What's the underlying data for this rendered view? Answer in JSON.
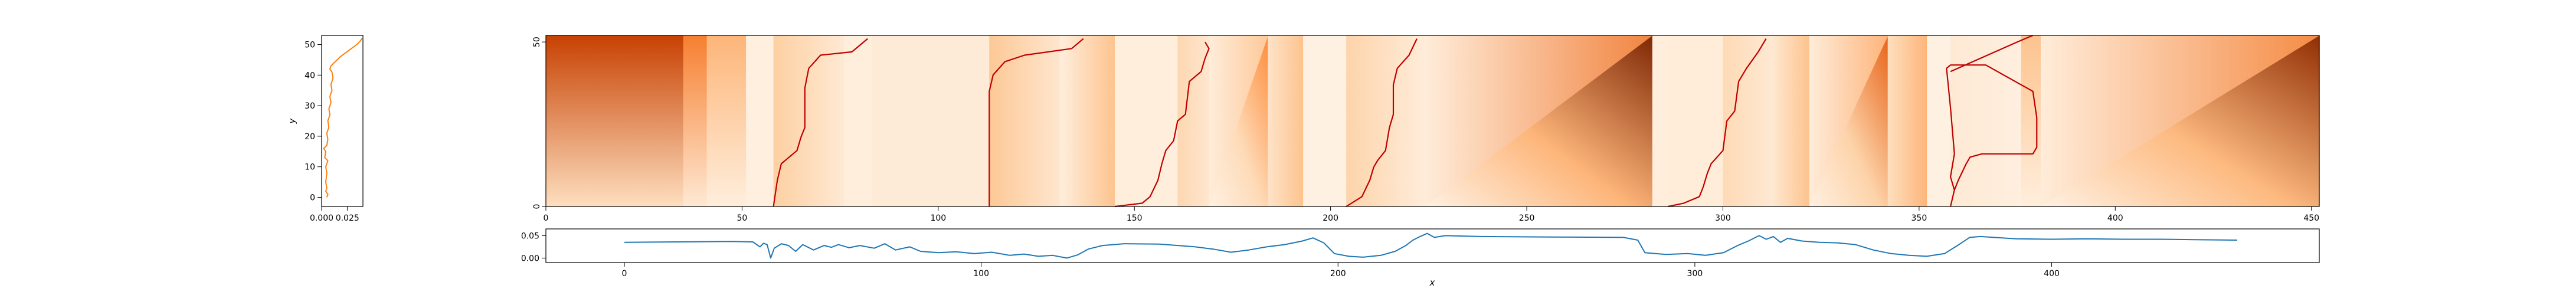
{
  "figure": {
    "background": "#ffffff"
  },
  "chart_data": [
    {
      "id": "side-profile",
      "type": "line",
      "orientation": "vertical",
      "xlabel": "",
      "ylabel": "y",
      "xlim": [
        0,
        0.04
      ],
      "ylim": [
        -3,
        53
      ],
      "xticks": [
        0.0,
        0.025
      ],
      "xtick_labels": [
        "0.000",
        "0.025"
      ],
      "yticks": [
        0,
        10,
        20,
        30,
        40,
        50
      ],
      "ytick_labels": [
        "0",
        "10",
        "20",
        "30",
        "40",
        "50"
      ],
      "color": "#ff7f0e",
      "grid": false,
      "points": [
        {
          "y": 0,
          "x": 0.005
        },
        {
          "y": 1,
          "x": 0.006
        },
        {
          "y": 2,
          "x": 0.004
        },
        {
          "y": 3,
          "x": 0.005
        },
        {
          "y": 5,
          "x": 0.004
        },
        {
          "y": 8,
          "x": 0.005
        },
        {
          "y": 10,
          "x": 0.004
        },
        {
          "y": 12,
          "x": 0.006
        },
        {
          "y": 13,
          "x": 0.003
        },
        {
          "y": 15,
          "x": 0.004
        },
        {
          "y": 16,
          "x": 0.002
        },
        {
          "y": 17,
          "x": 0.005
        },
        {
          "y": 19,
          "x": 0.006
        },
        {
          "y": 21,
          "x": 0.005
        },
        {
          "y": 23,
          "x": 0.007
        },
        {
          "y": 25,
          "x": 0.006
        },
        {
          "y": 27,
          "x": 0.008
        },
        {
          "y": 29,
          "x": 0.007
        },
        {
          "y": 31,
          "x": 0.009
        },
        {
          "y": 33,
          "x": 0.008
        },
        {
          "y": 35,
          "x": 0.01
        },
        {
          "y": 37,
          "x": 0.009
        },
        {
          "y": 39,
          "x": 0.011
        },
        {
          "y": 41,
          "x": 0.01
        },
        {
          "y": 42,
          "x": 0.008
        },
        {
          "y": 43,
          "x": 0.009
        },
        {
          "y": 44,
          "x": 0.012
        },
        {
          "y": 45,
          "x": 0.015
        },
        {
          "y": 46,
          "x": 0.018
        },
        {
          "y": 47,
          "x": 0.022
        },
        {
          "y": 48,
          "x": 0.026
        },
        {
          "y": 49,
          "x": 0.03
        },
        {
          "y": 50,
          "x": 0.034
        },
        {
          "y": 51,
          "x": 0.037
        },
        {
          "y": 52,
          "x": 0.039
        }
      ]
    },
    {
      "id": "heatmap",
      "type": "heatmap",
      "xlabel": "",
      "ylabel": "",
      "xlim": [
        0,
        452
      ],
      "ylim": [
        0,
        52
      ],
      "xticks": [
        0,
        50,
        100,
        150,
        200,
        250,
        300,
        350,
        400,
        450
      ],
      "xtick_labels": [
        "0",
        "50",
        "100",
        "150",
        "200",
        "250",
        "300",
        "350",
        "400",
        "450"
      ],
      "yticks": [
        0,
        50
      ],
      "ytick_labels": [
        "0",
        "50"
      ],
      "colormap": "Oranges",
      "colormap_stops": [
        "#fff5eb",
        "#fdd0a2",
        "#fd8d3c",
        "#d94801",
        "#7f2704"
      ],
      "path_color": "#c00000",
      "segments": [
        {
          "x0": 0,
          "x1": 35,
          "kind": "gradient_y",
          "top": 0.8,
          "bottom": 0.15
        },
        {
          "x0": 35,
          "x1": 41,
          "kind": "gradient_y",
          "top": 0.55,
          "bottom": 0.08
        },
        {
          "x0": 41,
          "x1": 51,
          "kind": "gradient_y",
          "top": 0.35,
          "bottom": 0.05
        },
        {
          "x0": 51,
          "x1": 58,
          "kind": "flat",
          "level": 0.04
        },
        {
          "x0": 58,
          "x1": 76,
          "kind": "fade_x",
          "start": 0.25,
          "end": 0.08
        },
        {
          "x0": 76,
          "x1": 83,
          "kind": "flat",
          "level": 0.05
        },
        {
          "x0": 83,
          "x1": 113,
          "kind": "flat",
          "level": 0.07
        },
        {
          "x0": 113,
          "x1": 131,
          "kind": "fade_x",
          "start": 0.28,
          "end": 0.1
        },
        {
          "x0": 131,
          "x1": 145,
          "kind": "fade_x",
          "start": 0.05,
          "end": 0.3
        },
        {
          "x0": 145,
          "x1": 161,
          "kind": "flat",
          "level": 0.05
        },
        {
          "x0": 161,
          "x1": 169,
          "kind": "fade_x",
          "start": 0.2,
          "end": 0.1
        },
        {
          "x0": 169,
          "x1": 184,
          "kind": "triangle",
          "peak": 0.5
        },
        {
          "x0": 184,
          "x1": 193,
          "kind": "fade_x",
          "start": 0.12,
          "end": 0.3
        },
        {
          "x0": 193,
          "x1": 204,
          "kind": "flat",
          "level": 0.03
        },
        {
          "x0": 204,
          "x1": 224,
          "kind": "fade_x",
          "start": 0.22,
          "end": 0.06
        },
        {
          "x0": 224,
          "x1": 282,
          "kind": "triangle",
          "peak": 1.0
        },
        {
          "x0": 282,
          "x1": 286,
          "kind": "flat",
          "level": 0.05
        },
        {
          "x0": 286,
          "x1": 300,
          "kind": "flat",
          "level": 0.06
        },
        {
          "x0": 300,
          "x1": 313,
          "kind": "fade_x",
          "start": 0.18,
          "end": 0.08
        },
        {
          "x0": 313,
          "x1": 322,
          "kind": "fade_x",
          "start": 0.1,
          "end": 0.3
        },
        {
          "x0": 322,
          "x1": 342,
          "kind": "triangle",
          "peak": 0.65
        },
        {
          "x0": 342,
          "x1": 352,
          "kind": "fade_x",
          "start": 0.15,
          "end": 0.35
        },
        {
          "x0": 352,
          "x1": 358,
          "kind": "flat",
          "level": 0.03
        },
        {
          "x0": 358,
          "x1": 376,
          "kind": "fade_x",
          "start": 0.08,
          "end": 0.04
        },
        {
          "x0": 376,
          "x1": 381,
          "kind": "gradient_y",
          "top": 0.3,
          "bottom": 0.05
        },
        {
          "x0": 381,
          "x1": 452,
          "kind": "triangle",
          "peak": 0.95
        }
      ],
      "paths": [
        [
          [
            58,
            0
          ],
          [
            59,
            8
          ],
          [
            60,
            13
          ],
          [
            62,
            15
          ],
          [
            64,
            17
          ],
          [
            65,
            21
          ],
          [
            66,
            24
          ],
          [
            66,
            36
          ],
          [
            67,
            42
          ],
          [
            70,
            46
          ],
          [
            78,
            47
          ],
          [
            82,
            51
          ]
        ],
        [
          [
            113,
            0
          ],
          [
            113,
            35
          ],
          [
            114,
            40
          ],
          [
            117,
            44
          ],
          [
            122,
            46
          ],
          [
            134,
            48
          ],
          [
            137,
            51
          ]
        ],
        [
          [
            145,
            0
          ],
          [
            152,
            1
          ],
          [
            154,
            3
          ],
          [
            156,
            8
          ],
          [
            157,
            13
          ],
          [
            158,
            17
          ],
          [
            160,
            20
          ],
          [
            161,
            26
          ],
          [
            163,
            28
          ],
          [
            164,
            38
          ],
          [
            167,
            41
          ],
          [
            168,
            45
          ],
          [
            169,
            48
          ],
          [
            168,
            50
          ]
        ],
        [
          [
            204,
            0
          ],
          [
            208,
            3
          ],
          [
            210,
            8
          ],
          [
            211,
            12
          ],
          [
            212,
            14
          ],
          [
            214,
            17
          ],
          [
            215,
            24
          ],
          [
            216,
            28
          ],
          [
            216,
            37
          ],
          [
            217,
            42
          ],
          [
            220,
            46
          ],
          [
            222,
            51
          ]
        ],
        [
          [
            286,
            0
          ],
          [
            290,
            1
          ],
          [
            294,
            3
          ],
          [
            295,
            6
          ],
          [
            296,
            10
          ],
          [
            297,
            13
          ],
          [
            300,
            17
          ],
          [
            301,
            26
          ],
          [
            303,
            29
          ],
          [
            304,
            38
          ],
          [
            306,
            42
          ],
          [
            309,
            47
          ],
          [
            311,
            51
          ]
        ],
        [
          [
            358,
            0
          ],
          [
            359,
            5
          ],
          [
            360,
            8
          ],
          [
            362,
            13
          ],
          [
            363,
            15
          ],
          [
            366,
            16
          ],
          [
            379,
            16
          ],
          [
            380,
            18
          ],
          [
            380,
            27
          ],
          [
            379,
            35
          ],
          [
            367,
            43
          ],
          [
            358,
            43
          ],
          [
            357,
            42
          ],
          [
            358,
            30
          ],
          [
            359,
            16
          ],
          [
            358,
            9
          ],
          [
            359,
            5
          ]
        ],
        [
          [
            358,
            41
          ],
          [
            375,
            50
          ],
          [
            379,
            52
          ]
        ]
      ]
    },
    {
      "id": "bottom-profile",
      "type": "line",
      "xlabel": "x",
      "ylabel": "",
      "xlim": [
        -22,
        475
      ],
      "ylim": [
        -0.01,
        0.065
      ],
      "xticks": [
        0,
        100,
        200,
        300,
        400
      ],
      "xtick_labels": [
        "0",
        "100",
        "200",
        "300",
        "400"
      ],
      "yticks": [
        0.0,
        0.05
      ],
      "ytick_labels": [
        "0.00",
        "0.05"
      ],
      "color": "#1f77b4",
      "grid": false,
      "points": [
        {
          "x": 0,
          "y": 0.035
        },
        {
          "x": 15,
          "y": 0.036
        },
        {
          "x": 30,
          "y": 0.037
        },
        {
          "x": 36,
          "y": 0.036
        },
        {
          "x": 38,
          "y": 0.025
        },
        {
          "x": 39,
          "y": 0.033
        },
        {
          "x": 40,
          "y": 0.03
        },
        {
          "x": 41,
          "y": 0.0
        },
        {
          "x": 42,
          "y": 0.022
        },
        {
          "x": 44,
          "y": 0.032
        },
        {
          "x": 46,
          "y": 0.028
        },
        {
          "x": 48,
          "y": 0.015
        },
        {
          "x": 50,
          "y": 0.03
        },
        {
          "x": 53,
          "y": 0.018
        },
        {
          "x": 56,
          "y": 0.028
        },
        {
          "x": 58,
          "y": 0.024
        },
        {
          "x": 60,
          "y": 0.03
        },
        {
          "x": 63,
          "y": 0.023
        },
        {
          "x": 66,
          "y": 0.028
        },
        {
          "x": 70,
          "y": 0.022
        },
        {
          "x": 73,
          "y": 0.032
        },
        {
          "x": 76,
          "y": 0.018
        },
        {
          "x": 80,
          "y": 0.025
        },
        {
          "x": 83,
          "y": 0.015
        },
        {
          "x": 88,
          "y": 0.012
        },
        {
          "x": 93,
          "y": 0.014
        },
        {
          "x": 98,
          "y": 0.01
        },
        {
          "x": 103,
          "y": 0.013
        },
        {
          "x": 108,
          "y": 0.006
        },
        {
          "x": 112,
          "y": 0.009
        },
        {
          "x": 116,
          "y": 0.004
        },
        {
          "x": 120,
          "y": 0.006
        },
        {
          "x": 124,
          "y": 0.0
        },
        {
          "x": 127,
          "y": 0.007
        },
        {
          "x": 130,
          "y": 0.02
        },
        {
          "x": 134,
          "y": 0.028
        },
        {
          "x": 140,
          "y": 0.032
        },
        {
          "x": 150,
          "y": 0.031
        },
        {
          "x": 160,
          "y": 0.025
        },
        {
          "x": 165,
          "y": 0.02
        },
        {
          "x": 170,
          "y": 0.013
        },
        {
          "x": 175,
          "y": 0.018
        },
        {
          "x": 180,
          "y": 0.025
        },
        {
          "x": 185,
          "y": 0.03
        },
        {
          "x": 190,
          "y": 0.038
        },
        {
          "x": 193,
          "y": 0.045
        },
        {
          "x": 196,
          "y": 0.034
        },
        {
          "x": 199,
          "y": 0.01
        },
        {
          "x": 203,
          "y": 0.004
        },
        {
          "x": 207,
          "y": 0.002
        },
        {
          "x": 212,
          "y": 0.006
        },
        {
          "x": 216,
          "y": 0.015
        },
        {
          "x": 219,
          "y": 0.028
        },
        {
          "x": 221,
          "y": 0.04
        },
        {
          "x": 223,
          "y": 0.048
        },
        {
          "x": 225,
          "y": 0.055
        },
        {
          "x": 227,
          "y": 0.046
        },
        {
          "x": 230,
          "y": 0.05
        },
        {
          "x": 240,
          "y": 0.048
        },
        {
          "x": 260,
          "y": 0.047
        },
        {
          "x": 280,
          "y": 0.046
        },
        {
          "x": 284,
          "y": 0.04
        },
        {
          "x": 286,
          "y": 0.012
        },
        {
          "x": 292,
          "y": 0.008
        },
        {
          "x": 298,
          "y": 0.01
        },
        {
          "x": 303,
          "y": 0.006
        },
        {
          "x": 308,
          "y": 0.012
        },
        {
          "x": 312,
          "y": 0.028
        },
        {
          "x": 315,
          "y": 0.038
        },
        {
          "x": 318,
          "y": 0.05
        },
        {
          "x": 320,
          "y": 0.042
        },
        {
          "x": 322,
          "y": 0.048
        },
        {
          "x": 324,
          "y": 0.035
        },
        {
          "x": 326,
          "y": 0.044
        },
        {
          "x": 330,
          "y": 0.038
        },
        {
          "x": 335,
          "y": 0.035
        },
        {
          "x": 340,
          "y": 0.034
        },
        {
          "x": 345,
          "y": 0.03
        },
        {
          "x": 350,
          "y": 0.018
        },
        {
          "x": 355,
          "y": 0.01
        },
        {
          "x": 360,
          "y": 0.006
        },
        {
          "x": 365,
          "y": 0.004
        },
        {
          "x": 370,
          "y": 0.01
        },
        {
          "x": 374,
          "y": 0.03
        },
        {
          "x": 377,
          "y": 0.046
        },
        {
          "x": 380,
          "y": 0.048
        },
        {
          "x": 390,
          "y": 0.043
        },
        {
          "x": 400,
          "y": 0.042
        },
        {
          "x": 410,
          "y": 0.043
        },
        {
          "x": 420,
          "y": 0.042
        },
        {
          "x": 430,
          "y": 0.042
        },
        {
          "x": 440,
          "y": 0.041
        },
        {
          "x": 452,
          "y": 0.04
        }
      ]
    }
  ]
}
